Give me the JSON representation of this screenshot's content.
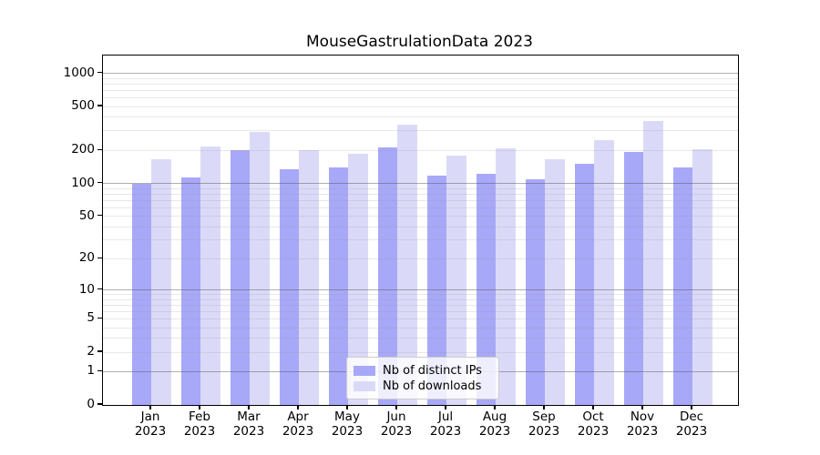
{
  "figure": {
    "background": "#ffffff"
  },
  "chart_data": {
    "type": "bar",
    "title": "MouseGastrulationData 2023",
    "categories": [
      "Jan",
      "Feb",
      "Mar",
      "Apr",
      "May",
      "Jun",
      "Jul",
      "Aug",
      "Sep",
      "Oct",
      "Nov",
      "Dec"
    ],
    "year_label": "2023",
    "series": [
      {
        "name": "Nb of distinct IPs",
        "color": "#a8a8f8",
        "values": [
          100,
          113,
          202,
          136,
          141,
          213,
          118,
          122,
          109,
          152,
          194,
          139
        ]
      },
      {
        "name": "Nb of downloads",
        "color": "#dadaf8",
        "values": [
          166,
          215,
          295,
          200,
          187,
          340,
          181,
          208,
          165,
          248,
          370,
          205
        ]
      }
    ],
    "y_scale": "log1p",
    "y_ticks": [
      0,
      1,
      2,
      5,
      10,
      20,
      50,
      100,
      200,
      500,
      1000
    ],
    "y_max": 1450,
    "gridlines": {
      "major": [
        1,
        10,
        100,
        1000
      ],
      "minor": [
        2,
        3,
        4,
        5,
        6,
        7,
        8,
        9,
        20,
        30,
        40,
        50,
        60,
        70,
        80,
        90,
        200,
        300,
        400,
        500,
        600,
        700,
        800,
        900
      ]
    },
    "colors": {
      "axis": "#000000",
      "grid_major": "rgba(85,85,85,0.47)",
      "grid_minor": "rgba(150,150,150,0.22)"
    },
    "legend": {
      "location": "lower center"
    }
  }
}
